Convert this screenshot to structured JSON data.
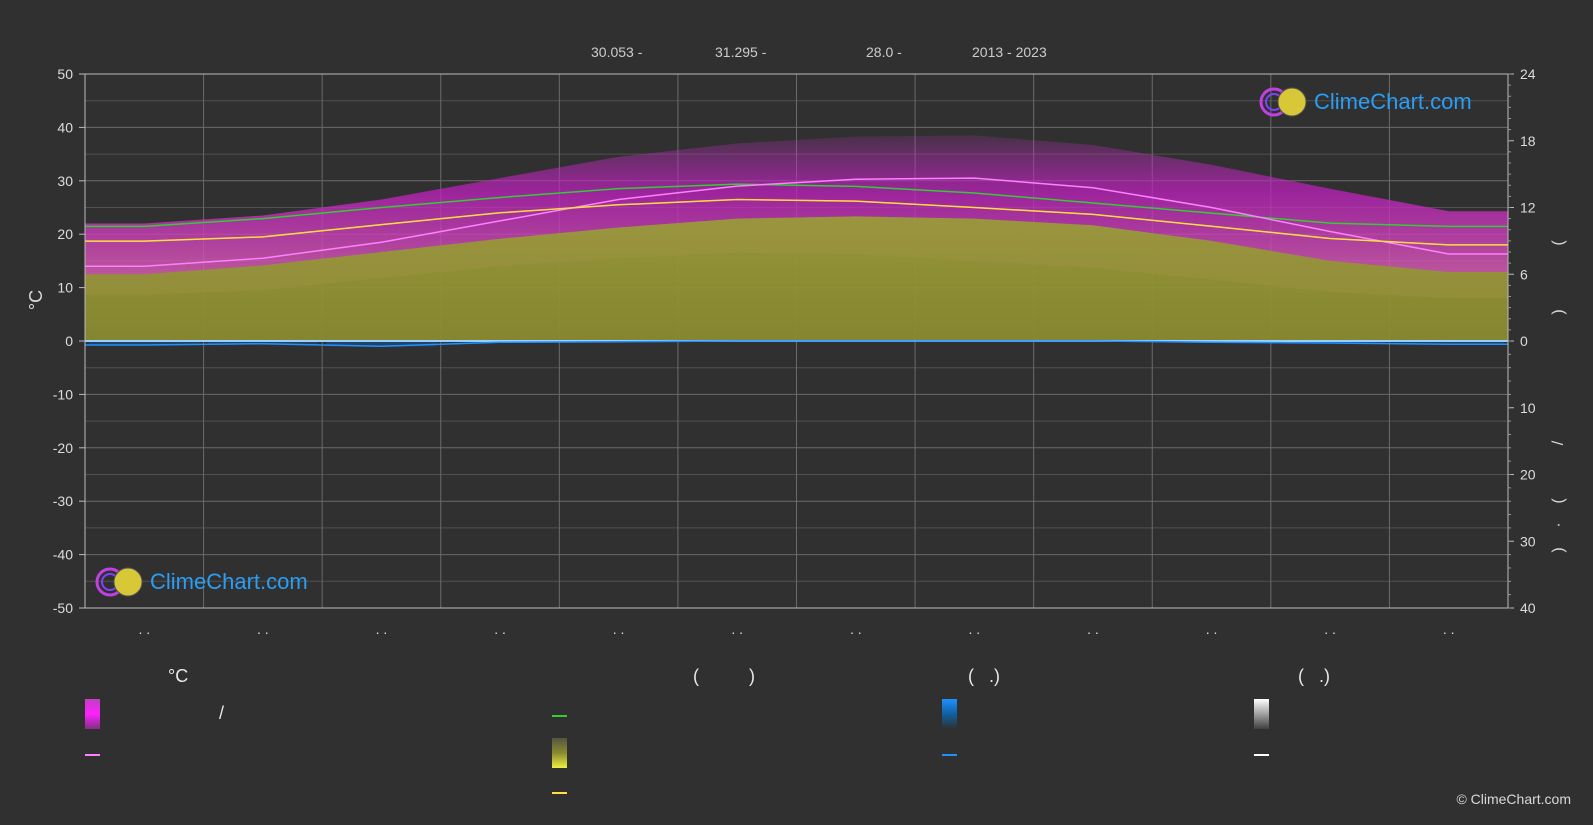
{
  "header": {
    "lat": "30.053 -",
    "lon": "31.295 -",
    "elev": "28.0 -",
    "years": "2013 - 2023"
  },
  "logo_text": "ClimeChart.com",
  "copyright": "© ClimeChart.com",
  "legend": {
    "col1_title": "°C",
    "col1_range_sep": "/",
    "col2_title": "(          )",
    "col3_title": "(   .)",
    "col4_title": "(   .)"
  },
  "right_axis_decor": [
    "(",
    ")",
    "/",
    "(",
    "·",
    ")"
  ],
  "colors": {
    "background": "#303030",
    "max_band": "#c020c0",
    "mean_max": "#ff80ff",
    "daylight": "#33cc33",
    "sunshine": "#a8a83a",
    "mean_sun": "#ffe040",
    "rain": "#2090ff",
    "snow": "#ffffff",
    "logo": "#2a9df4"
  },
  "chart_data": {
    "type": "area",
    "months": 12,
    "month_labels": [
      ". .",
      ". .",
      ". .",
      ". .",
      ". .",
      ". .",
      ". .",
      ". .",
      ". .",
      ". .",
      ". .",
      ". ."
    ],
    "left_axis": {
      "unit": "°C",
      "range": [
        -50,
        50
      ],
      "ticks": [
        50,
        40,
        30,
        20,
        10,
        0,
        -10,
        -20,
        -30,
        -40,
        -50
      ]
    },
    "right_axis_top": {
      "range": [
        0,
        24
      ],
      "ticks": [
        24,
        18,
        12,
        6,
        0
      ]
    },
    "right_axis_bottom": {
      "range": [
        0,
        40
      ],
      "ticks": [
        10,
        20,
        30,
        40
      ]
    },
    "series": [
      {
        "key": "mean_max",
        "unit": "°C",
        "values": [
          14,
          15.5,
          18.5,
          22.5,
          26.5,
          29,
          30.3,
          30.5,
          28.7,
          25,
          20.5,
          16.3
        ]
      },
      {
        "key": "mean",
        "unit": "°C",
        "values": [
          18.7,
          19.5,
          21.8,
          24,
          25.5,
          26.5,
          26.2,
          25,
          23.7,
          21.5,
          19.2,
          18
        ]
      },
      {
        "key": "daylight",
        "unit": "h",
        "values": [
          10.3,
          11.0,
          12.0,
          12.9,
          13.7,
          14.1,
          13.9,
          13.3,
          12.4,
          11.5,
          10.6,
          10.3
        ]
      },
      {
        "key": "sunshine",
        "unit": "h",
        "values": [
          6.0,
          6.8,
          8.0,
          9.2,
          10.2,
          11.0,
          11.2,
          11.0,
          10.4,
          9.0,
          7.2,
          6.2
        ]
      },
      {
        "key": "precipitation",
        "unit": "mm",
        "values": [
          0.6,
          0.4,
          0.8,
          0.2,
          0.1,
          0,
          0,
          0,
          0,
          0.2,
          0.3,
          0.5
        ]
      }
    ],
    "grid": true
  }
}
